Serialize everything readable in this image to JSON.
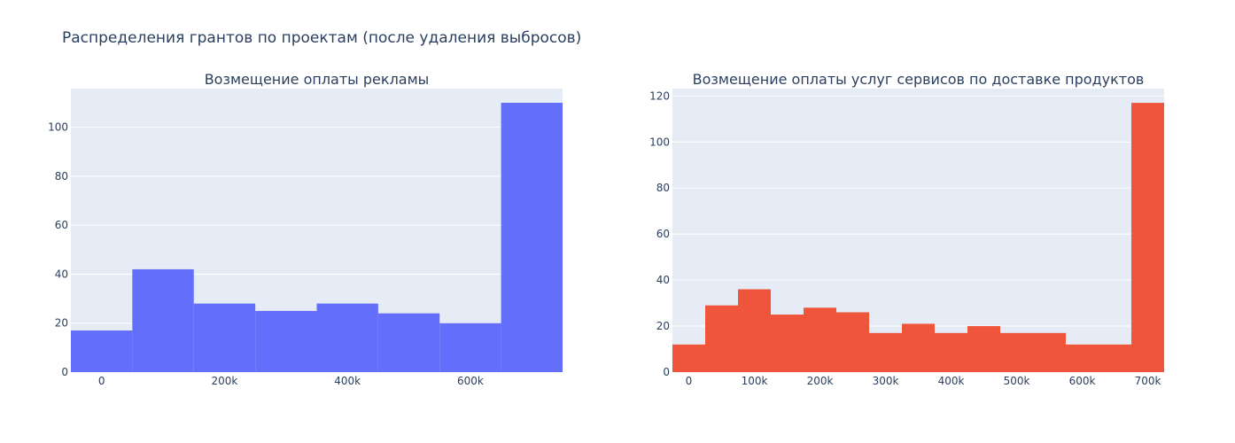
{
  "title": "Распределения грантов по проектам (после удаления выбросов)",
  "chart_data": [
    {
      "type": "bar",
      "title": "Возмещение оплаты рекламы",
      "color": "#636efa",
      "bins": [
        {
          "x0": -50000,
          "x1": 50000,
          "count": 17
        },
        {
          "x0": 50000,
          "x1": 150000,
          "count": 42
        },
        {
          "x0": 150000,
          "x1": 250000,
          "count": 28
        },
        {
          "x0": 250000,
          "x1": 350000,
          "count": 25
        },
        {
          "x0": 350000,
          "x1": 450000,
          "count": 28
        },
        {
          "x0": 450000,
          "x1": 550000,
          "count": 24
        },
        {
          "x0": 550000,
          "x1": 650000,
          "count": 20
        },
        {
          "x0": 650000,
          "x1": 750000,
          "count": 110
        }
      ],
      "xlim": [
        -50000,
        750000
      ],
      "ylim": [
        0,
        115.8
      ],
      "xticks": [
        {
          "v": 0,
          "label": "0"
        },
        {
          "v": 200000,
          "label": "200k"
        },
        {
          "v": 400000,
          "label": "400k"
        },
        {
          "v": 600000,
          "label": "600k"
        }
      ],
      "yticks": [
        {
          "v": 0,
          "label": "0"
        },
        {
          "v": 20,
          "label": "20"
        },
        {
          "v": 40,
          "label": "40"
        },
        {
          "v": 60,
          "label": "60"
        },
        {
          "v": 80,
          "label": "80"
        },
        {
          "v": 100,
          "label": "100"
        }
      ],
      "grid": true
    },
    {
      "type": "bar",
      "title": "Возмещение оплаты услуг сервисов по доставке продуктов",
      "color": "#ef553b",
      "bins": [
        {
          "x0": -25000,
          "x1": 25000,
          "count": 12
        },
        {
          "x0": 25000,
          "x1": 75000,
          "count": 29
        },
        {
          "x0": 75000,
          "x1": 125000,
          "count": 36
        },
        {
          "x0": 125000,
          "x1": 175000,
          "count": 25
        },
        {
          "x0": 175000,
          "x1": 225000,
          "count": 28
        },
        {
          "x0": 225000,
          "x1": 275000,
          "count": 26
        },
        {
          "x0": 275000,
          "x1": 325000,
          "count": 17
        },
        {
          "x0": 325000,
          "x1": 375000,
          "count": 21
        },
        {
          "x0": 375000,
          "x1": 425000,
          "count": 17
        },
        {
          "x0": 425000,
          "x1": 475000,
          "count": 20
        },
        {
          "x0": 475000,
          "x1": 525000,
          "count": 17
        },
        {
          "x0": 525000,
          "x1": 575000,
          "count": 17
        },
        {
          "x0": 575000,
          "x1": 625000,
          "count": 12
        },
        {
          "x0": 625000,
          "x1": 675000,
          "count": 12
        },
        {
          "x0": 675000,
          "x1": 725000,
          "count": 117
        }
      ],
      "xlim": [
        -25000,
        725000
      ],
      "ylim": [
        0,
        123.2
      ],
      "xticks": [
        {
          "v": 0,
          "label": "0"
        },
        {
          "v": 100000,
          "label": "100k"
        },
        {
          "v": 200000,
          "label": "200k"
        },
        {
          "v": 300000,
          "label": "300k"
        },
        {
          "v": 400000,
          "label": "400k"
        },
        {
          "v": 500000,
          "label": "500k"
        },
        {
          "v": 600000,
          "label": "600k"
        },
        {
          "v": 700000,
          "label": "700k"
        }
      ],
      "yticks": [
        {
          "v": 0,
          "label": "0"
        },
        {
          "v": 20,
          "label": "20"
        },
        {
          "v": 40,
          "label": "40"
        },
        {
          "v": 60,
          "label": "60"
        },
        {
          "v": 80,
          "label": "80"
        },
        {
          "v": 100,
          "label": "100"
        },
        {
          "v": 120,
          "label": "120"
        }
      ],
      "grid": true
    }
  ]
}
